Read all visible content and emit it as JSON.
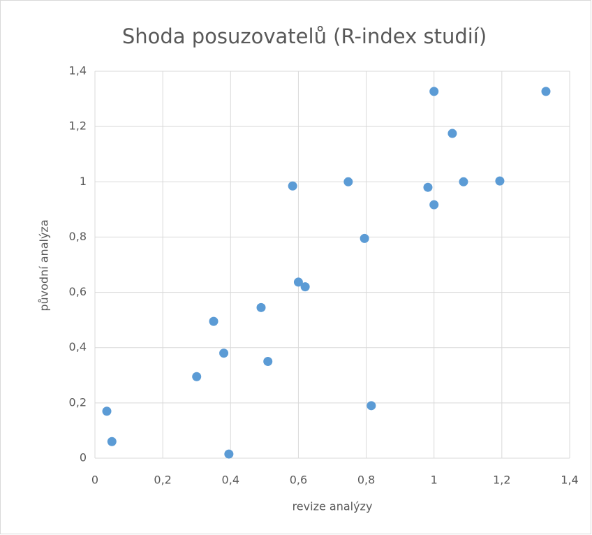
{
  "chart_data": {
    "type": "scatter",
    "title": "Shoda posuzovatelů (R-index studií)",
    "x_label": "revize analýzy",
    "y_label": "původní analýza",
    "series": [
      {
        "color": "#5b9bd5",
        "x": [
          0.035,
          0.05,
          0.3,
          0.35,
          0.38,
          0.395,
          0.49,
          0.51,
          0.583,
          0.6,
          0.62,
          0.747,
          0.795,
          0.815,
          0.982,
          1.0,
          1.0,
          1.054,
          1.087,
          1.194,
          1.33
        ],
        "values": [
          0.17,
          0.06,
          0.295,
          0.495,
          0.38,
          0.015,
          0.545,
          0.35,
          0.985,
          0.637,
          0.62,
          1.0,
          0.795,
          0.19,
          0.98,
          1.327,
          0.917,
          1.175,
          1.0,
          1.003,
          1.327
        ]
      }
    ],
    "xlim": [
      0,
      1.4
    ],
    "ylim": [
      0,
      1.4
    ],
    "xticks": [
      0,
      {
        "value": 0.2,
        "label": "0,2"
      },
      {
        "value": 0.4,
        "label": "0,4"
      },
      {
        "value": 0.6,
        "label": "0,6"
      },
      {
        "value": 0.8,
        "label": "0,8"
      },
      1,
      {
        "value": 1.2,
        "label": "1,2"
      },
      {
        "value": 1.4,
        "label": "1,4"
      }
    ],
    "yticks": [
      0,
      {
        "value": 0.2,
        "label": "0,2"
      },
      {
        "value": 0.4,
        "label": "0,4"
      },
      {
        "value": 0.6,
        "label": "0,6"
      },
      {
        "value": 0.8,
        "label": "0,8"
      },
      1,
      {
        "value": 1.2,
        "label": "1,2"
      },
      {
        "value": 1.4,
        "label": "1,4"
      }
    ],
    "grid": true
  }
}
